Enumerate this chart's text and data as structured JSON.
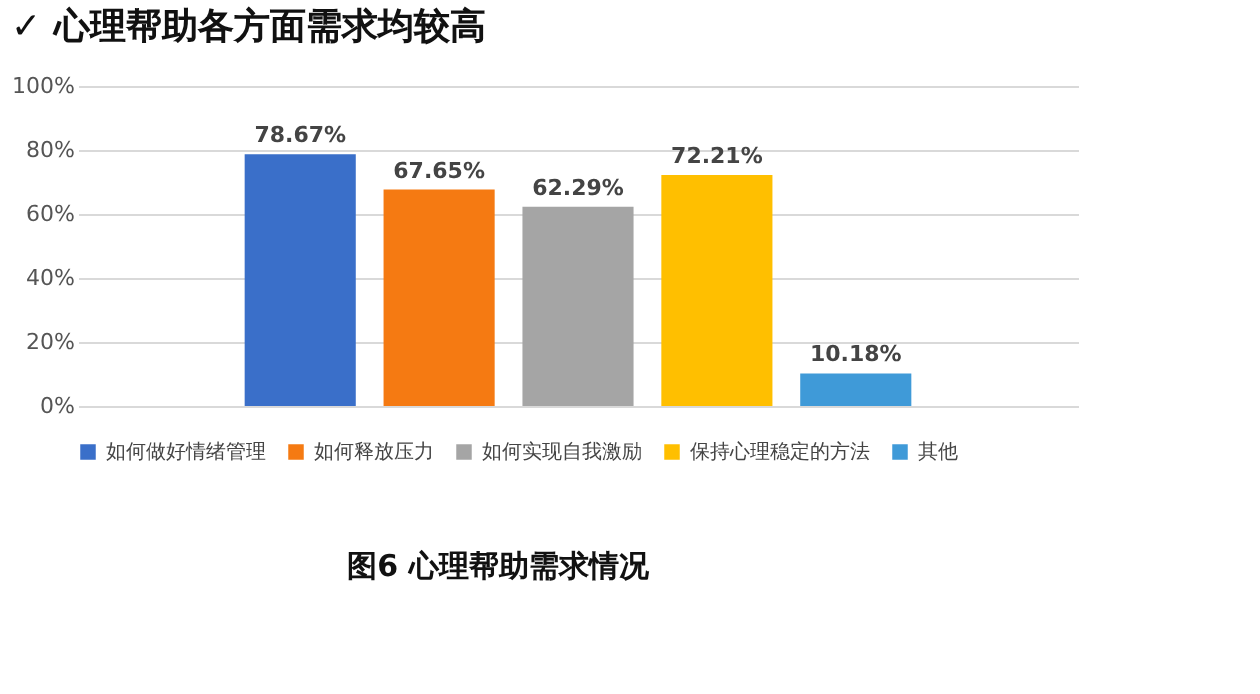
{
  "chart_data": {
    "type": "bar",
    "title": "✓ 心理帮助各方面需求均较高",
    "annotations": [
      "图6 心理帮助需求情况"
    ],
    "categories": [
      null
    ],
    "series": [
      {
        "name": "如何做好情绪管理",
        "color": "#3a6fc9",
        "values": [
          78.67
        ],
        "value_labels": [
          "78.67%"
        ]
      },
      {
        "name": "如何释放压力",
        "color": "#f57a12",
        "values": [
          67.65
        ],
        "value_labels": [
          "67.65%"
        ]
      },
      {
        "name": "如何实现自我激励",
        "color": "#a5a5a5",
        "values": [
          62.29
        ],
        "value_labels": [
          "62.29%"
        ]
      },
      {
        "name": "保持心理稳定的方法",
        "color": "#ffbf00",
        "values": [
          72.21
        ],
        "value_labels": [
          "72.21%"
        ]
      },
      {
        "name": "其他",
        "color": "#3f9ad8",
        "values": [
          10.18
        ],
        "value_labels": [
          "10.18%"
        ]
      }
    ],
    "ylim": [
      0,
      100
    ],
    "yticks": [
      {
        "value": 0,
        "label": "0%"
      },
      {
        "value": 20,
        "label": "20%"
      },
      {
        "value": 40,
        "label": "40%"
      },
      {
        "value": 60,
        "label": "60%"
      },
      {
        "value": 80,
        "label": "80%"
      },
      {
        "value": 100,
        "label": "100%"
      }
    ],
    "grid": "y",
    "legend": "bottom"
  }
}
